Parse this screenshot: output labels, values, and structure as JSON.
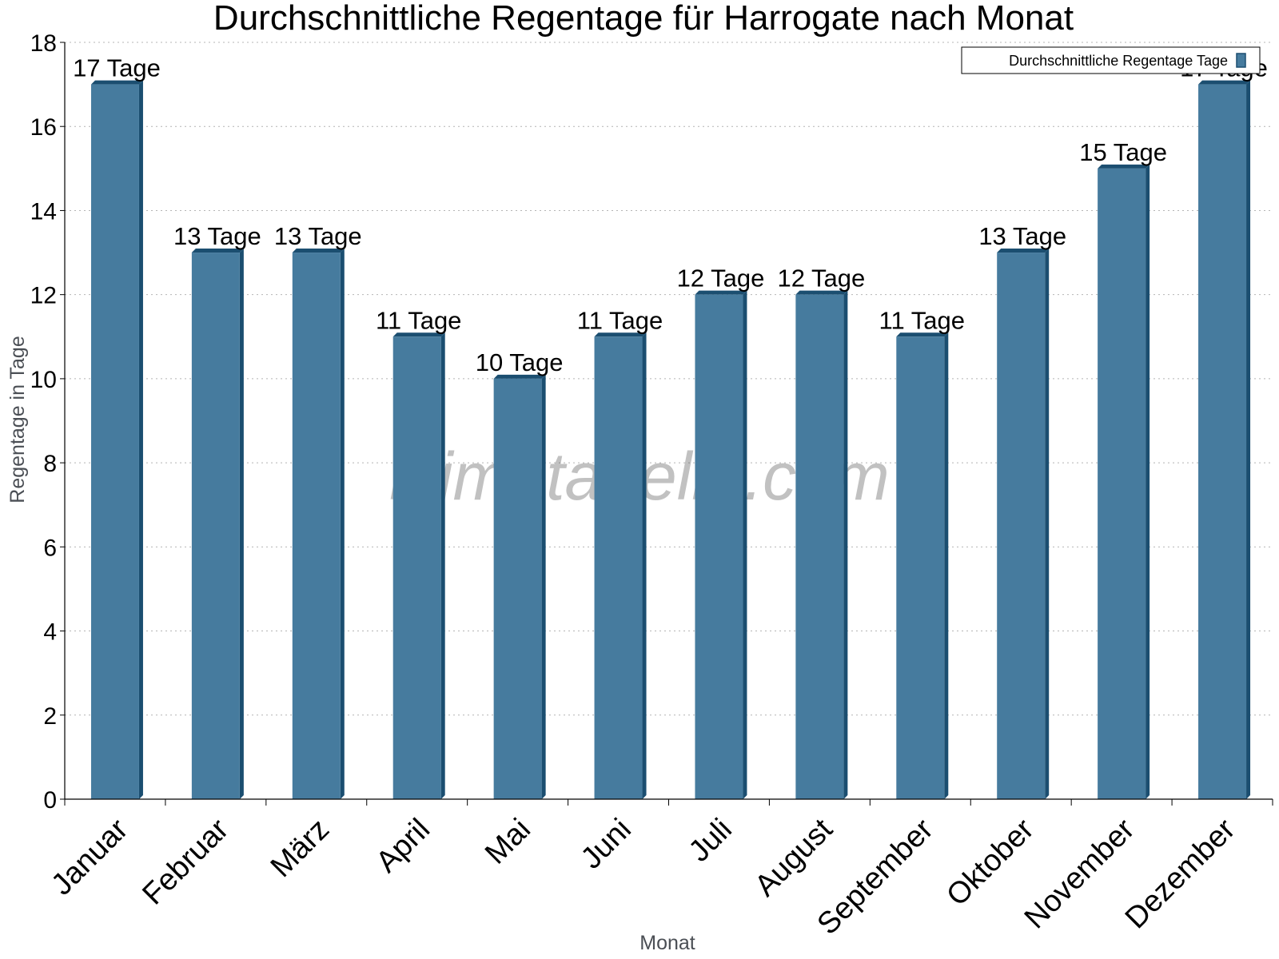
{
  "chart_data": {
    "type": "bar",
    "title": "Durchschnittliche Regentage für Harrogate nach Monat",
    "xlabel": "Monat",
    "ylabel": "Regentage in Tage",
    "ylim": [
      0,
      18
    ],
    "yticks": [
      0,
      2,
      4,
      6,
      8,
      10,
      12,
      14,
      16,
      18
    ],
    "grid": true,
    "legend_position": "top-right",
    "categories": [
      "Januar",
      "Februar",
      "März",
      "April",
      "Mai",
      "Juni",
      "Juli",
      "August",
      "September",
      "Oktober",
      "November",
      "Dezember"
    ],
    "series": [
      {
        "name": "Durchschnittliche Regentage Tage",
        "values": [
          17,
          13,
          13,
          11,
          10,
          11,
          12,
          12,
          11,
          13,
          15,
          17
        ],
        "data_labels": [
          "17 Tage",
          "13 Tage",
          "13 Tage",
          "11 Tage",
          "10 Tage",
          "11 Tage",
          "12 Tage",
          "12 Tage",
          "11 Tage",
          "13 Tage",
          "15 Tage",
          "17 Tage"
        ],
        "color": "#467b9e",
        "edge_color": "#1b4e70"
      }
    ],
    "watermark": "klimatabelle.com"
  }
}
